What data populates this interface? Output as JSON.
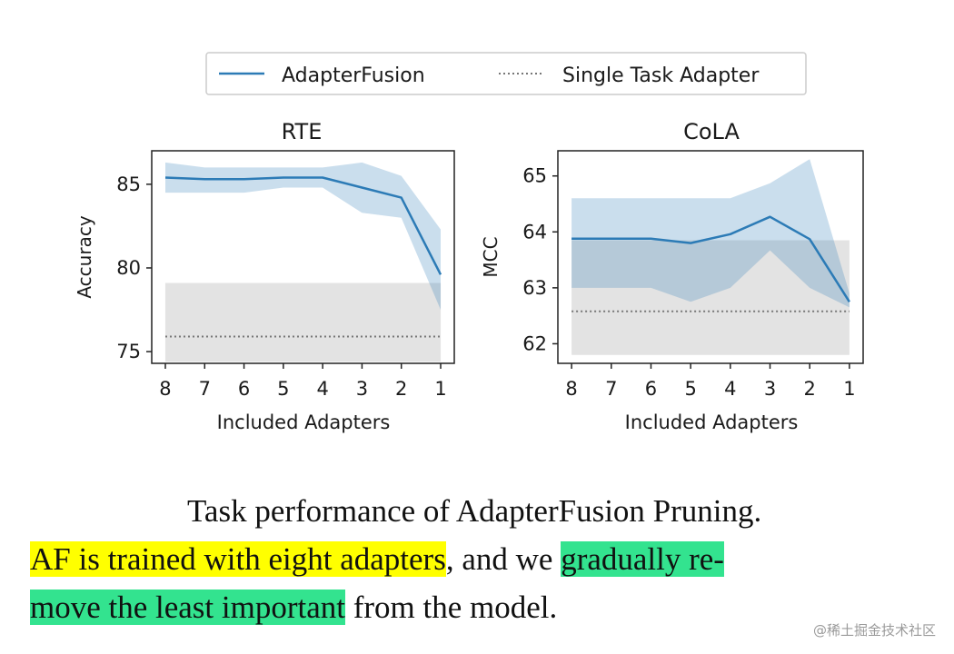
{
  "legend": {
    "adapterfusion": "AdapterFusion",
    "single_task": "Single Task Adapter"
  },
  "colors": {
    "line": "#2c7bb6",
    "band": "#b9d3ea",
    "baseline_band": "#e3e3e3",
    "baseline_line": "#777777",
    "highlight_yellow": "#ffff00",
    "highlight_green": "#33e38f"
  },
  "chart_data": [
    {
      "type": "line",
      "title": "RTE",
      "xlabel": "Included Adapters",
      "ylabel": "Accuracy",
      "categories": [
        "8",
        "7",
        "6",
        "5",
        "4",
        "3",
        "2",
        "1"
      ],
      "ylim": [
        74.3,
        87
      ],
      "yticks": [
        75,
        80,
        85
      ],
      "yticklabels": [
        "75",
        "80",
        "85"
      ],
      "series": [
        {
          "name": "AdapterFusion",
          "values": [
            85.4,
            85.3,
            85.3,
            85.4,
            85.4,
            84.8,
            84.2,
            79.6
          ],
          "lower": [
            84.5,
            84.5,
            84.5,
            84.8,
            84.8,
            83.3,
            83.0,
            77.5
          ],
          "upper": [
            86.3,
            86.0,
            86.0,
            86.0,
            86.0,
            86.3,
            85.5,
            82.3
          ]
        }
      ],
      "baseline": {
        "name": "Single Task Adapter",
        "value": 75.9,
        "lower": 74.4,
        "upper": 79.1
      }
    },
    {
      "type": "line",
      "title": "CoLA",
      "xlabel": "Included Adapters",
      "ylabel": "MCC",
      "categories": [
        "8",
        "7",
        "6",
        "5",
        "4",
        "3",
        "2",
        "1"
      ],
      "ylim": [
        61.65,
        65.45
      ],
      "yticks": [
        62,
        63,
        64,
        65
      ],
      "yticklabels": [
        "62",
        "63",
        "64",
        "65"
      ],
      "series": [
        {
          "name": "AdapterFusion",
          "values": [
            63.88,
            63.88,
            63.88,
            63.8,
            63.96,
            64.27,
            63.87,
            62.75
          ],
          "lower": [
            63.0,
            63.0,
            63.0,
            62.75,
            63.0,
            63.67,
            63.0,
            62.65
          ],
          "upper": [
            64.6,
            64.6,
            64.6,
            64.6,
            64.6,
            64.87,
            65.3,
            62.9
          ]
        }
      ],
      "baseline": {
        "name": "Single Task Adapter",
        "value": 62.58,
        "lower": 61.8,
        "upper": 63.85
      }
    }
  ],
  "caption": {
    "line1": "Task performance of AdapterFusion Pruning.",
    "line2_yellow": "AF is trained with eight adapters",
    "line2_mid": ", and we ",
    "line2_green": "gradually re-",
    "line3_green": "move the least important",
    "line3_rest": " from the model."
  },
  "watermark": "@稀土掘金技术社区"
}
